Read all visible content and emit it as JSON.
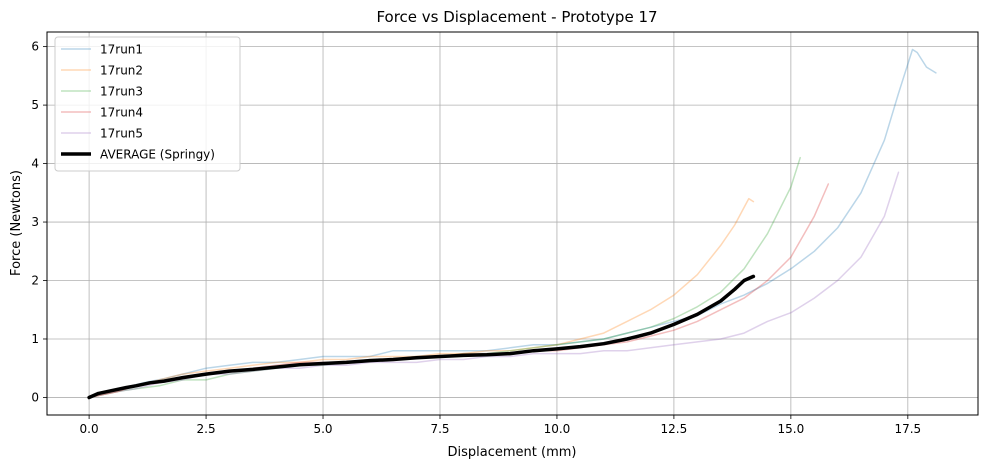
{
  "chart_data": {
    "type": "line",
    "title": "Force vs Displacement - Prototype 17",
    "xlabel": "Displacement (mm)",
    "ylabel": "Force (Newtons)",
    "xlim": [
      -0.9,
      19.0
    ],
    "ylim": [
      -0.3,
      6.25
    ],
    "xticks": [
      0.0,
      2.5,
      5.0,
      7.5,
      10.0,
      12.5,
      15.0,
      17.5
    ],
    "xtick_labels": [
      "0.0",
      "2.5",
      "5.0",
      "7.5",
      "10.0",
      "12.5",
      "15.0",
      "17.5"
    ],
    "yticks": [
      0,
      1,
      2,
      3,
      4,
      5,
      6
    ],
    "ytick_labels": [
      "0",
      "1",
      "2",
      "3",
      "4",
      "5",
      "6"
    ],
    "grid": true,
    "legend_position": "top-left",
    "series": [
      {
        "name": "17run1",
        "color": "#1f77b4",
        "opacity": 0.3,
        "width": 1.5,
        "x": [
          0.0,
          0.3,
          0.6,
          0.9,
          1.2,
          1.6,
          2.0,
          2.5,
          3.0,
          3.5,
          4.0,
          4.5,
          5.0,
          5.5,
          6.0,
          6.5,
          7.0,
          7.5,
          8.0,
          8.5,
          9.0,
          9.5,
          10.0,
          10.5,
          11.0,
          11.5,
          12.0,
          12.5,
          13.0,
          13.5,
          14.0,
          14.5,
          15.0,
          15.5,
          16.0,
          16.5,
          17.0,
          17.3,
          17.5,
          17.6,
          17.7,
          17.9,
          18.1
        ],
        "y": [
          0.0,
          0.08,
          0.15,
          0.2,
          0.26,
          0.32,
          0.4,
          0.5,
          0.55,
          0.6,
          0.6,
          0.65,
          0.7,
          0.7,
          0.7,
          0.8,
          0.8,
          0.8,
          0.8,
          0.8,
          0.85,
          0.9,
          0.9,
          0.95,
          1.0,
          1.1,
          1.2,
          1.3,
          1.4,
          1.6,
          1.75,
          1.95,
          2.2,
          2.5,
          2.9,
          3.5,
          4.4,
          5.2,
          5.7,
          5.95,
          5.9,
          5.65,
          5.55
        ]
      },
      {
        "name": "17run2",
        "color": "#ff7f0e",
        "opacity": 0.3,
        "width": 1.5,
        "x": [
          0.0,
          0.3,
          0.6,
          1.0,
          1.5,
          2.0,
          2.5,
          3.0,
          3.5,
          4.0,
          4.5,
          5.0,
          5.5,
          6.0,
          6.5,
          7.0,
          7.5,
          8.0,
          8.5,
          9.0,
          9.5,
          10.0,
          10.5,
          11.0,
          11.5,
          12.0,
          12.5,
          13.0,
          13.5,
          13.8,
          14.0,
          14.1,
          14.2
        ],
        "y": [
          0.0,
          0.05,
          0.1,
          0.2,
          0.3,
          0.4,
          0.45,
          0.5,
          0.55,
          0.6,
          0.6,
          0.65,
          0.65,
          0.7,
          0.7,
          0.7,
          0.75,
          0.75,
          0.8,
          0.8,
          0.85,
          0.9,
          1.0,
          1.1,
          1.3,
          1.5,
          1.75,
          2.1,
          2.6,
          2.95,
          3.25,
          3.4,
          3.35
        ]
      },
      {
        "name": "17run3",
        "color": "#2ca02c",
        "opacity": 0.3,
        "width": 1.5,
        "x": [
          0.0,
          0.3,
          0.6,
          1.0,
          1.5,
          2.0,
          2.5,
          3.0,
          3.5,
          4.0,
          4.5,
          5.0,
          5.5,
          6.0,
          6.5,
          7.0,
          7.5,
          8.0,
          8.5,
          9.0,
          9.5,
          10.0,
          10.5,
          11.0,
          11.5,
          12.0,
          12.5,
          13.0,
          13.5,
          14.0,
          14.5,
          15.0,
          15.2
        ],
        "y": [
          0.0,
          0.05,
          0.1,
          0.15,
          0.2,
          0.3,
          0.3,
          0.4,
          0.45,
          0.5,
          0.55,
          0.55,
          0.6,
          0.65,
          0.65,
          0.7,
          0.7,
          0.75,
          0.75,
          0.8,
          0.85,
          0.9,
          0.95,
          1.0,
          1.1,
          1.2,
          1.35,
          1.55,
          1.8,
          2.2,
          2.8,
          3.6,
          4.1
        ]
      },
      {
        "name": "17run4",
        "color": "#d62728",
        "opacity": 0.3,
        "width": 1.5,
        "x": [
          0.0,
          0.3,
          0.6,
          1.0,
          1.5,
          2.0,
          2.5,
          3.0,
          3.5,
          4.0,
          4.5,
          5.0,
          5.5,
          6.0,
          6.5,
          7.0,
          7.5,
          8.0,
          8.5,
          9.0,
          9.5,
          10.0,
          10.5,
          11.0,
          11.5,
          12.0,
          12.5,
          13.0,
          13.5,
          14.0,
          14.5,
          15.0,
          15.5,
          15.8
        ],
        "y": [
          0.0,
          0.05,
          0.1,
          0.2,
          0.25,
          0.35,
          0.4,
          0.45,
          0.5,
          0.55,
          0.6,
          0.6,
          0.6,
          0.65,
          0.65,
          0.7,
          0.7,
          0.75,
          0.75,
          0.75,
          0.8,
          0.8,
          0.85,
          0.9,
          0.95,
          1.05,
          1.15,
          1.3,
          1.5,
          1.7,
          2.0,
          2.4,
          3.1,
          3.65
        ]
      },
      {
        "name": "17run5",
        "color": "#9467bd",
        "opacity": 0.3,
        "width": 1.5,
        "x": [
          0.0,
          0.3,
          0.6,
          1.0,
          1.5,
          2.0,
          2.5,
          3.0,
          3.5,
          4.0,
          4.5,
          5.0,
          5.5,
          6.0,
          6.5,
          7.0,
          7.5,
          8.0,
          8.5,
          9.0,
          9.5,
          10.0,
          10.5,
          11.0,
          11.5,
          12.0,
          12.5,
          13.0,
          13.5,
          14.0,
          14.5,
          15.0,
          15.5,
          16.0,
          16.5,
          17.0,
          17.3
        ],
        "y": [
          0.0,
          0.05,
          0.1,
          0.15,
          0.25,
          0.3,
          0.4,
          0.4,
          0.45,
          0.5,
          0.5,
          0.55,
          0.55,
          0.6,
          0.6,
          0.6,
          0.65,
          0.65,
          0.7,
          0.7,
          0.75,
          0.75,
          0.75,
          0.8,
          0.8,
          0.85,
          0.9,
          0.95,
          1.0,
          1.1,
          1.3,
          1.45,
          1.7,
          2.0,
          2.4,
          3.1,
          3.85
        ]
      },
      {
        "name": "AVERAGE (Springy)",
        "color": "#000000",
        "opacity": 1.0,
        "width": 3.5,
        "x": [
          0.0,
          0.2,
          0.5,
          0.8,
          1.0,
          1.3,
          1.6,
          2.0,
          2.5,
          3.0,
          3.5,
          4.0,
          4.5,
          5.0,
          5.5,
          6.0,
          6.5,
          7.0,
          7.5,
          8.0,
          8.5,
          9.0,
          9.5,
          10.0,
          10.5,
          11.0,
          11.5,
          12.0,
          12.5,
          13.0,
          13.5,
          13.8,
          14.0,
          14.2
        ],
        "y": [
          0.0,
          0.07,
          0.12,
          0.17,
          0.2,
          0.25,
          0.28,
          0.34,
          0.4,
          0.45,
          0.48,
          0.52,
          0.56,
          0.58,
          0.6,
          0.63,
          0.65,
          0.68,
          0.7,
          0.72,
          0.73,
          0.75,
          0.8,
          0.83,
          0.87,
          0.92,
          1.0,
          1.1,
          1.25,
          1.42,
          1.65,
          1.85,
          2.0,
          2.07
        ]
      }
    ]
  }
}
